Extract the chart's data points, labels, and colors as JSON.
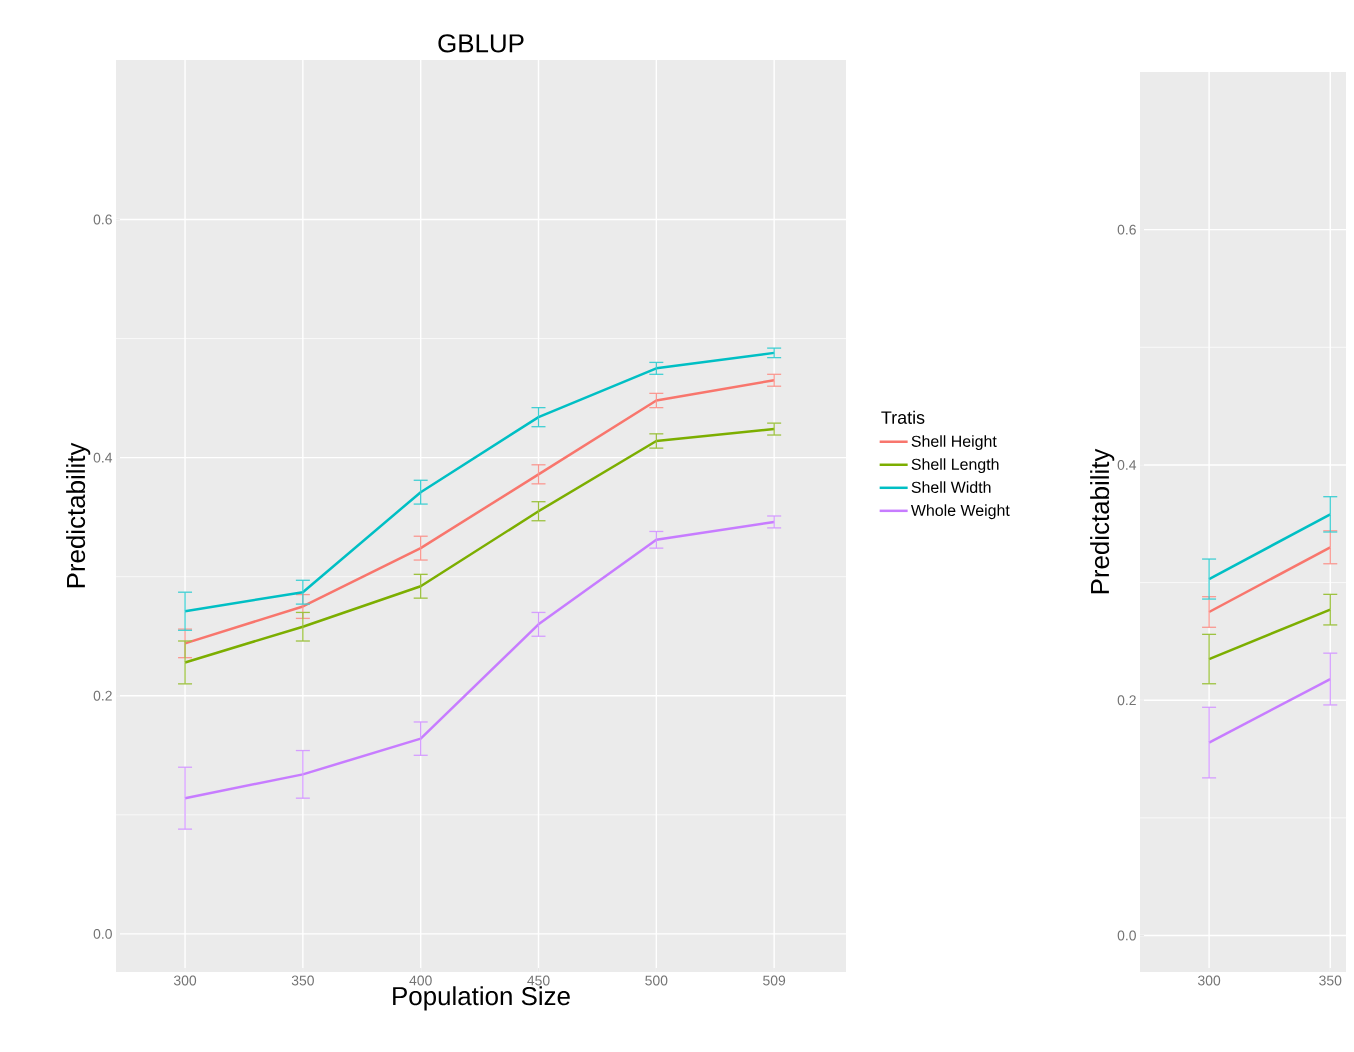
{
  "chart_data": [
    {
      "type": "line",
      "title": "GBLUP",
      "xlabel": "Population Size",
      "ylabel": "Predictability",
      "legend_title": "Tratis",
      "legend": "right",
      "grid": true,
      "categories": [
        "300",
        "350",
        "400",
        "450",
        "500",
        "509"
      ],
      "ylim": [
        -0.032,
        0.734
      ],
      "yticks": [
        {
          "value": 0,
          "label": "0.0"
        },
        {
          "value": 0.2,
          "label": "0.2"
        },
        {
          "value": 0.4,
          "label": "0.4"
        },
        {
          "value": 0.6,
          "label": "0.6"
        }
      ],
      "series": [
        {
          "name": "Shell Height",
          "color": "#F8766D",
          "values": [
            0.244,
            0.275,
            0.324,
            0.386,
            0.448,
            0.465
          ],
          "errors": [
            0.012,
            0.01,
            0.01,
            0.008,
            0.006,
            0.005
          ]
        },
        {
          "name": "Shell Length",
          "color": "#7CAE00",
          "values": [
            0.228,
            0.258,
            0.292,
            0.355,
            0.414,
            0.424
          ],
          "errors": [
            0.018,
            0.012,
            0.01,
            0.008,
            0.006,
            0.005
          ]
        },
        {
          "name": "Shell Width",
          "color": "#00BFC4",
          "values": [
            0.271,
            0.287,
            0.371,
            0.434,
            0.475,
            0.488
          ],
          "errors": [
            0.016,
            0.01,
            0.01,
            0.008,
            0.005,
            0.004
          ]
        },
        {
          "name": "Whole Weight",
          "color": "#C77CFF",
          "values": [
            0.114,
            0.134,
            0.164,
            0.26,
            0.331,
            0.346
          ],
          "errors": [
            0.026,
            0.02,
            0.014,
            0.01,
            0.007,
            0.005
          ]
        }
      ]
    },
    {
      "type": "line",
      "ylabel": "Predictability",
      "grid": true,
      "categories": [
        "300",
        "350"
      ],
      "ylim": [
        -0.031,
        0.734
      ],
      "yticks": [
        {
          "value": 0,
          "label": "0.0"
        },
        {
          "value": 0.2,
          "label": "0.2"
        },
        {
          "value": 0.4,
          "label": "0.4"
        },
        {
          "value": 0.6,
          "label": "0.6"
        }
      ],
      "series": [
        {
          "color": "#F8766D",
          "values": [
            0.275,
            0.33
          ],
          "errors": [
            0.013,
            0.014
          ]
        },
        {
          "color": "#7CAE00",
          "values": [
            0.235,
            0.277
          ],
          "errors": [
            0.021,
            0.013
          ]
        },
        {
          "color": "#00BFC4",
          "values": [
            0.303,
            0.358
          ],
          "errors": [
            0.017,
            0.015
          ]
        },
        {
          "color": "#C77CFF",
          "values": [
            0.164,
            0.218
          ],
          "errors": [
            0.03,
            0.022
          ]
        }
      ]
    }
  ]
}
